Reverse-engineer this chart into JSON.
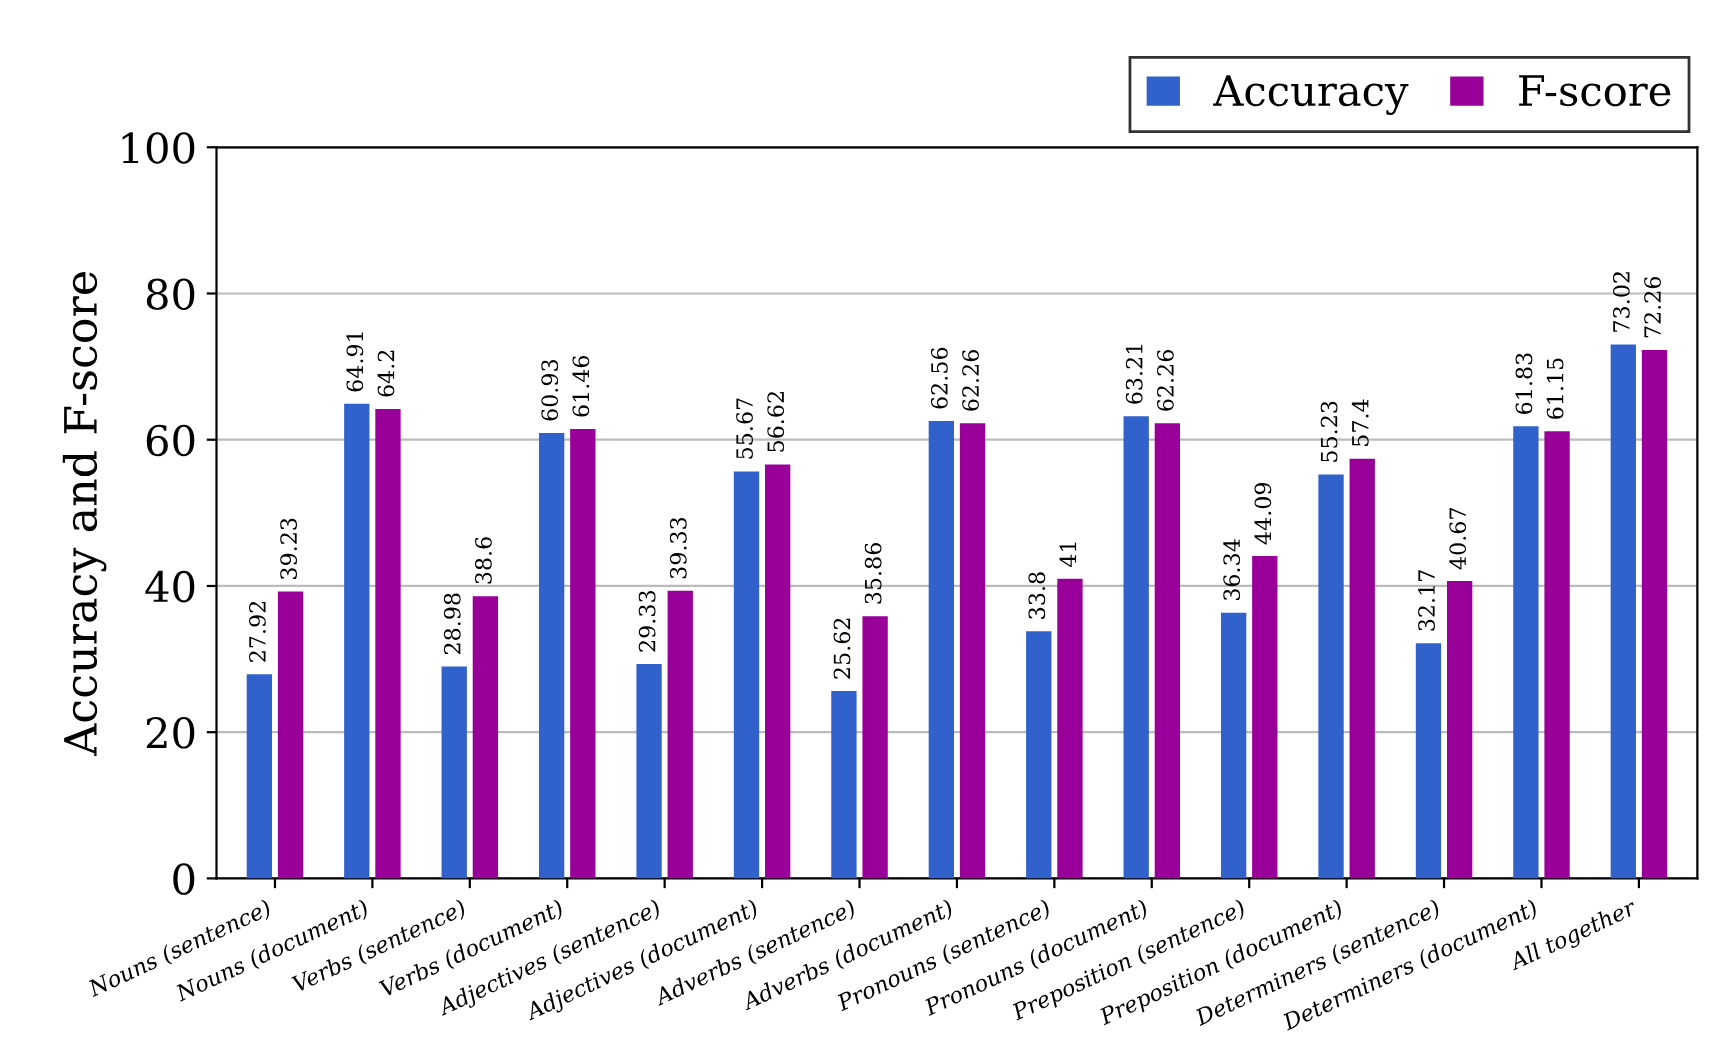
{
  "chart_data": {
    "type": "bar",
    "ylabel": "Accuracy and F-score",
    "categories": [
      "Nouns (sentence)",
      "Nouns (document)",
      "Verbs (sentence)",
      "Verbs (document)",
      "Adjectives (sentence)",
      "Adjectives (document)",
      "Adverbs (sentence)",
      "Adverbs (document)",
      "Pronouns (sentence)",
      "Pronouns (document)",
      "Preposition (sentence)",
      "Preposition (document)",
      "Determiners (sentence)",
      "Determiners (document)",
      "All together"
    ],
    "series": [
      {
        "name": "Accuracy",
        "color": "#3162cc",
        "values": [
          27.92,
          64.91,
          28.98,
          60.93,
          29.33,
          55.67,
          25.62,
          62.56,
          33.8,
          63.21,
          36.34,
          55.23,
          32.17,
          61.83,
          73.02
        ]
      },
      {
        "name": "F-score",
        "color": "#990099",
        "values": [
          39.23,
          64.2,
          38.6,
          61.46,
          39.33,
          56.62,
          35.86,
          62.26,
          41,
          62.26,
          44.09,
          57.4,
          40.67,
          61.15,
          72.26
        ]
      }
    ],
    "ylim": [
      0,
      100
    ],
    "yticks": [
      0,
      20,
      40,
      60,
      80,
      100
    ],
    "grid": "y",
    "legend": "top right",
    "data_labels": true
  }
}
